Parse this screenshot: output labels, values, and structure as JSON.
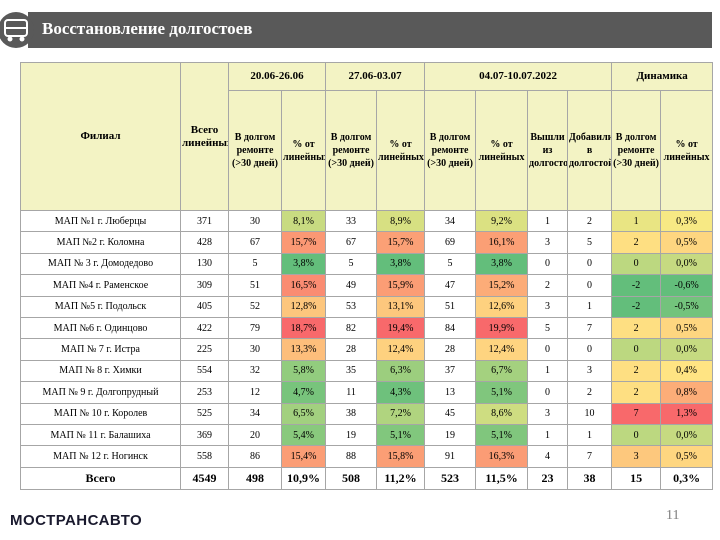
{
  "header": {
    "title": "Восстановление долгостоев"
  },
  "table": {
    "columns": [
      "Филиал",
      "Всего линейных",
      "В долгом ремонте (>30 дней)",
      "% от линейных",
      "В долгом ремонте (>30 дней)",
      "% от линейных",
      "В долгом ремонте (>30 дней)",
      "% от линейных",
      "Вышли из долгостоя",
      "Добавились в долгостой",
      "В долгом ремонте (>30 дней)",
      "% от линейных"
    ],
    "groups": [
      "20.06-26.06",
      "27.06-03.07",
      "04.07-10.07.2022",
      "Динамика"
    ],
    "rows": [
      [
        "МАП №1 г. Люберцы",
        "371",
        "30",
        "8,1%",
        "33",
        "8,9%",
        "34",
        "9,2%",
        "1",
        "2",
        "1",
        "0,3%"
      ],
      [
        "МАП №2 г. Коломна",
        "428",
        "67",
        "15,7%",
        "67",
        "15,7%",
        "69",
        "16,1%",
        "3",
        "5",
        "2",
        "0,5%"
      ],
      [
        "МАП № 3 г. Домодедово",
        "130",
        "5",
        "3,8%",
        "5",
        "3,8%",
        "5",
        "3,8%",
        "0",
        "0",
        "0",
        "0,0%"
      ],
      [
        "МАП №4 г. Раменское",
        "309",
        "51",
        "16,5%",
        "49",
        "15,9%",
        "47",
        "15,2%",
        "2",
        "0",
        "-2",
        "-0,6%"
      ],
      [
        "МАП №5 г. Подольск",
        "405",
        "52",
        "12,8%",
        "53",
        "13,1%",
        "51",
        "12,6%",
        "3",
        "1",
        "-2",
        "-0,5%"
      ],
      [
        "МАП №6 г. Одинцово",
        "422",
        "79",
        "18,7%",
        "82",
        "19,4%",
        "84",
        "19,9%",
        "5",
        "7",
        "2",
        "0,5%"
      ],
      [
        "МАП № 7 г. Истра",
        "225",
        "30",
        "13,3%",
        "28",
        "12,4%",
        "28",
        "12,4%",
        "0",
        "0",
        "0",
        "0,0%"
      ],
      [
        "МАП № 8 г. Химки",
        "554",
        "32",
        "5,8%",
        "35",
        "6,3%",
        "37",
        "6,7%",
        "1",
        "3",
        "2",
        "0,4%"
      ],
      [
        "МАП № 9 г. Долгопрудный",
        "253",
        "12",
        "4,7%",
        "11",
        "4,3%",
        "13",
        "5,1%",
        "0",
        "2",
        "2",
        "0,8%"
      ],
      [
        "МАП № 10 г. Королев",
        "525",
        "34",
        "6,5%",
        "38",
        "7,2%",
        "45",
        "8,6%",
        "3",
        "10",
        "7",
        "1,3%"
      ],
      [
        "МАП № 11 г. Балашиха",
        "369",
        "20",
        "5,4%",
        "19",
        "5,1%",
        "19",
        "5,1%",
        "1",
        "1",
        "0",
        "0,0%"
      ],
      [
        "МАП № 12 г. Ногинск",
        "558",
        "86",
        "15,4%",
        "88",
        "15,8%",
        "91",
        "16,3%",
        "4",
        "7",
        "3",
        "0,5%"
      ]
    ],
    "total": [
      "Всего",
      "4549",
      "498",
      "10,9%",
      "508",
      "11,2%",
      "523",
      "11,5%",
      "23",
      "38",
      "15",
      "0,3%"
    ]
  },
  "footer": {
    "logo": "МОСТРАНСАВТО",
    "page": "11"
  }
}
